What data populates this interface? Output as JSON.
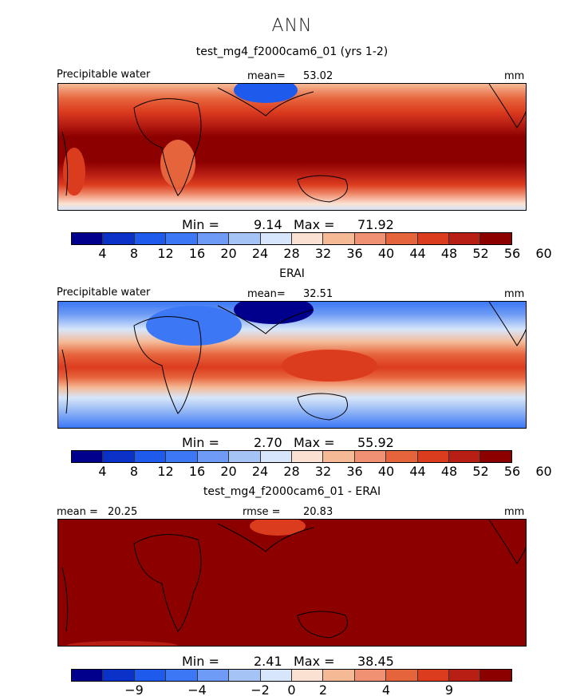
{
  "suptitle": "ANN",
  "colors": [
    "#00008c",
    "#0a32c8",
    "#1e5aeb",
    "#3c78f5",
    "#6e9bf5",
    "#a5c3f5",
    "#d7e6fa",
    "#fbe1d2",
    "#f5b996",
    "#f09173",
    "#e6643c",
    "#dc3c1e",
    "#b91e14",
    "#8c0000"
  ],
  "panels": [
    {
      "title": "test_mg4_f2000cam6_01 (yrs 1-2)",
      "var_label": "Precipitable water",
      "mean_label": "mean=",
      "mean_value": "53.02",
      "units": "mm",
      "min_label": "Min =",
      "min_value": "9.14",
      "max_label": "Max =",
      "max_value": "71.92",
      "ticks": [
        "4",
        "8",
        "12",
        "16",
        "20",
        "24",
        "28",
        "32",
        "36",
        "40",
        "44",
        "48",
        "52",
        "56",
        "60"
      ]
    },
    {
      "title": "ERAI",
      "var_label": "Precipitable water",
      "mean_label": "mean=",
      "mean_value": "32.51",
      "units": "mm",
      "min_label": "Min =",
      "min_value": "2.70",
      "max_label": "Max =",
      "max_value": "55.92",
      "ticks": [
        "4",
        "8",
        "12",
        "16",
        "20",
        "24",
        "28",
        "32",
        "36",
        "40",
        "44",
        "48",
        "52",
        "56",
        "60"
      ]
    },
    {
      "title": "test_mg4_f2000cam6_01 - ERAI",
      "var_label": "mean =",
      "mean_label": "rmse =",
      "mean_value": "20.83",
      "diff_mean_value": "20.25",
      "units": "mm",
      "min_label": "Min =",
      "min_value": "2.41",
      "max_label": "Max =",
      "max_value": "38.45",
      "ticks": [
        "−9",
        "−4",
        "−2",
        "0",
        "2",
        "4",
        "9"
      ]
    }
  ],
  "chart_data": [
    {
      "type": "heatmap",
      "title": "test_mg4_f2000cam6_01 (yrs 1-2)",
      "variable": "Precipitable water",
      "units": "mm",
      "mean": 53.02,
      "min": 9.14,
      "max": 71.92,
      "levels": [
        4,
        8,
        12,
        16,
        20,
        24,
        28,
        32,
        36,
        40,
        44,
        48,
        52,
        56,
        60
      ]
    },
    {
      "type": "heatmap",
      "title": "ERAI",
      "variable": "Precipitable water",
      "units": "mm",
      "mean": 32.51,
      "min": 2.7,
      "max": 55.92,
      "levels": [
        4,
        8,
        12,
        16,
        20,
        24,
        28,
        32,
        36,
        40,
        44,
        48,
        52,
        56,
        60
      ]
    },
    {
      "type": "heatmap",
      "title": "test_mg4_f2000cam6_01 - ERAI",
      "units": "mm",
      "mean": 20.25,
      "rmse": 20.83,
      "min": 2.41,
      "max": 38.45,
      "levels": [
        -9,
        -4,
        -2,
        0,
        2,
        4,
        9
      ]
    }
  ]
}
